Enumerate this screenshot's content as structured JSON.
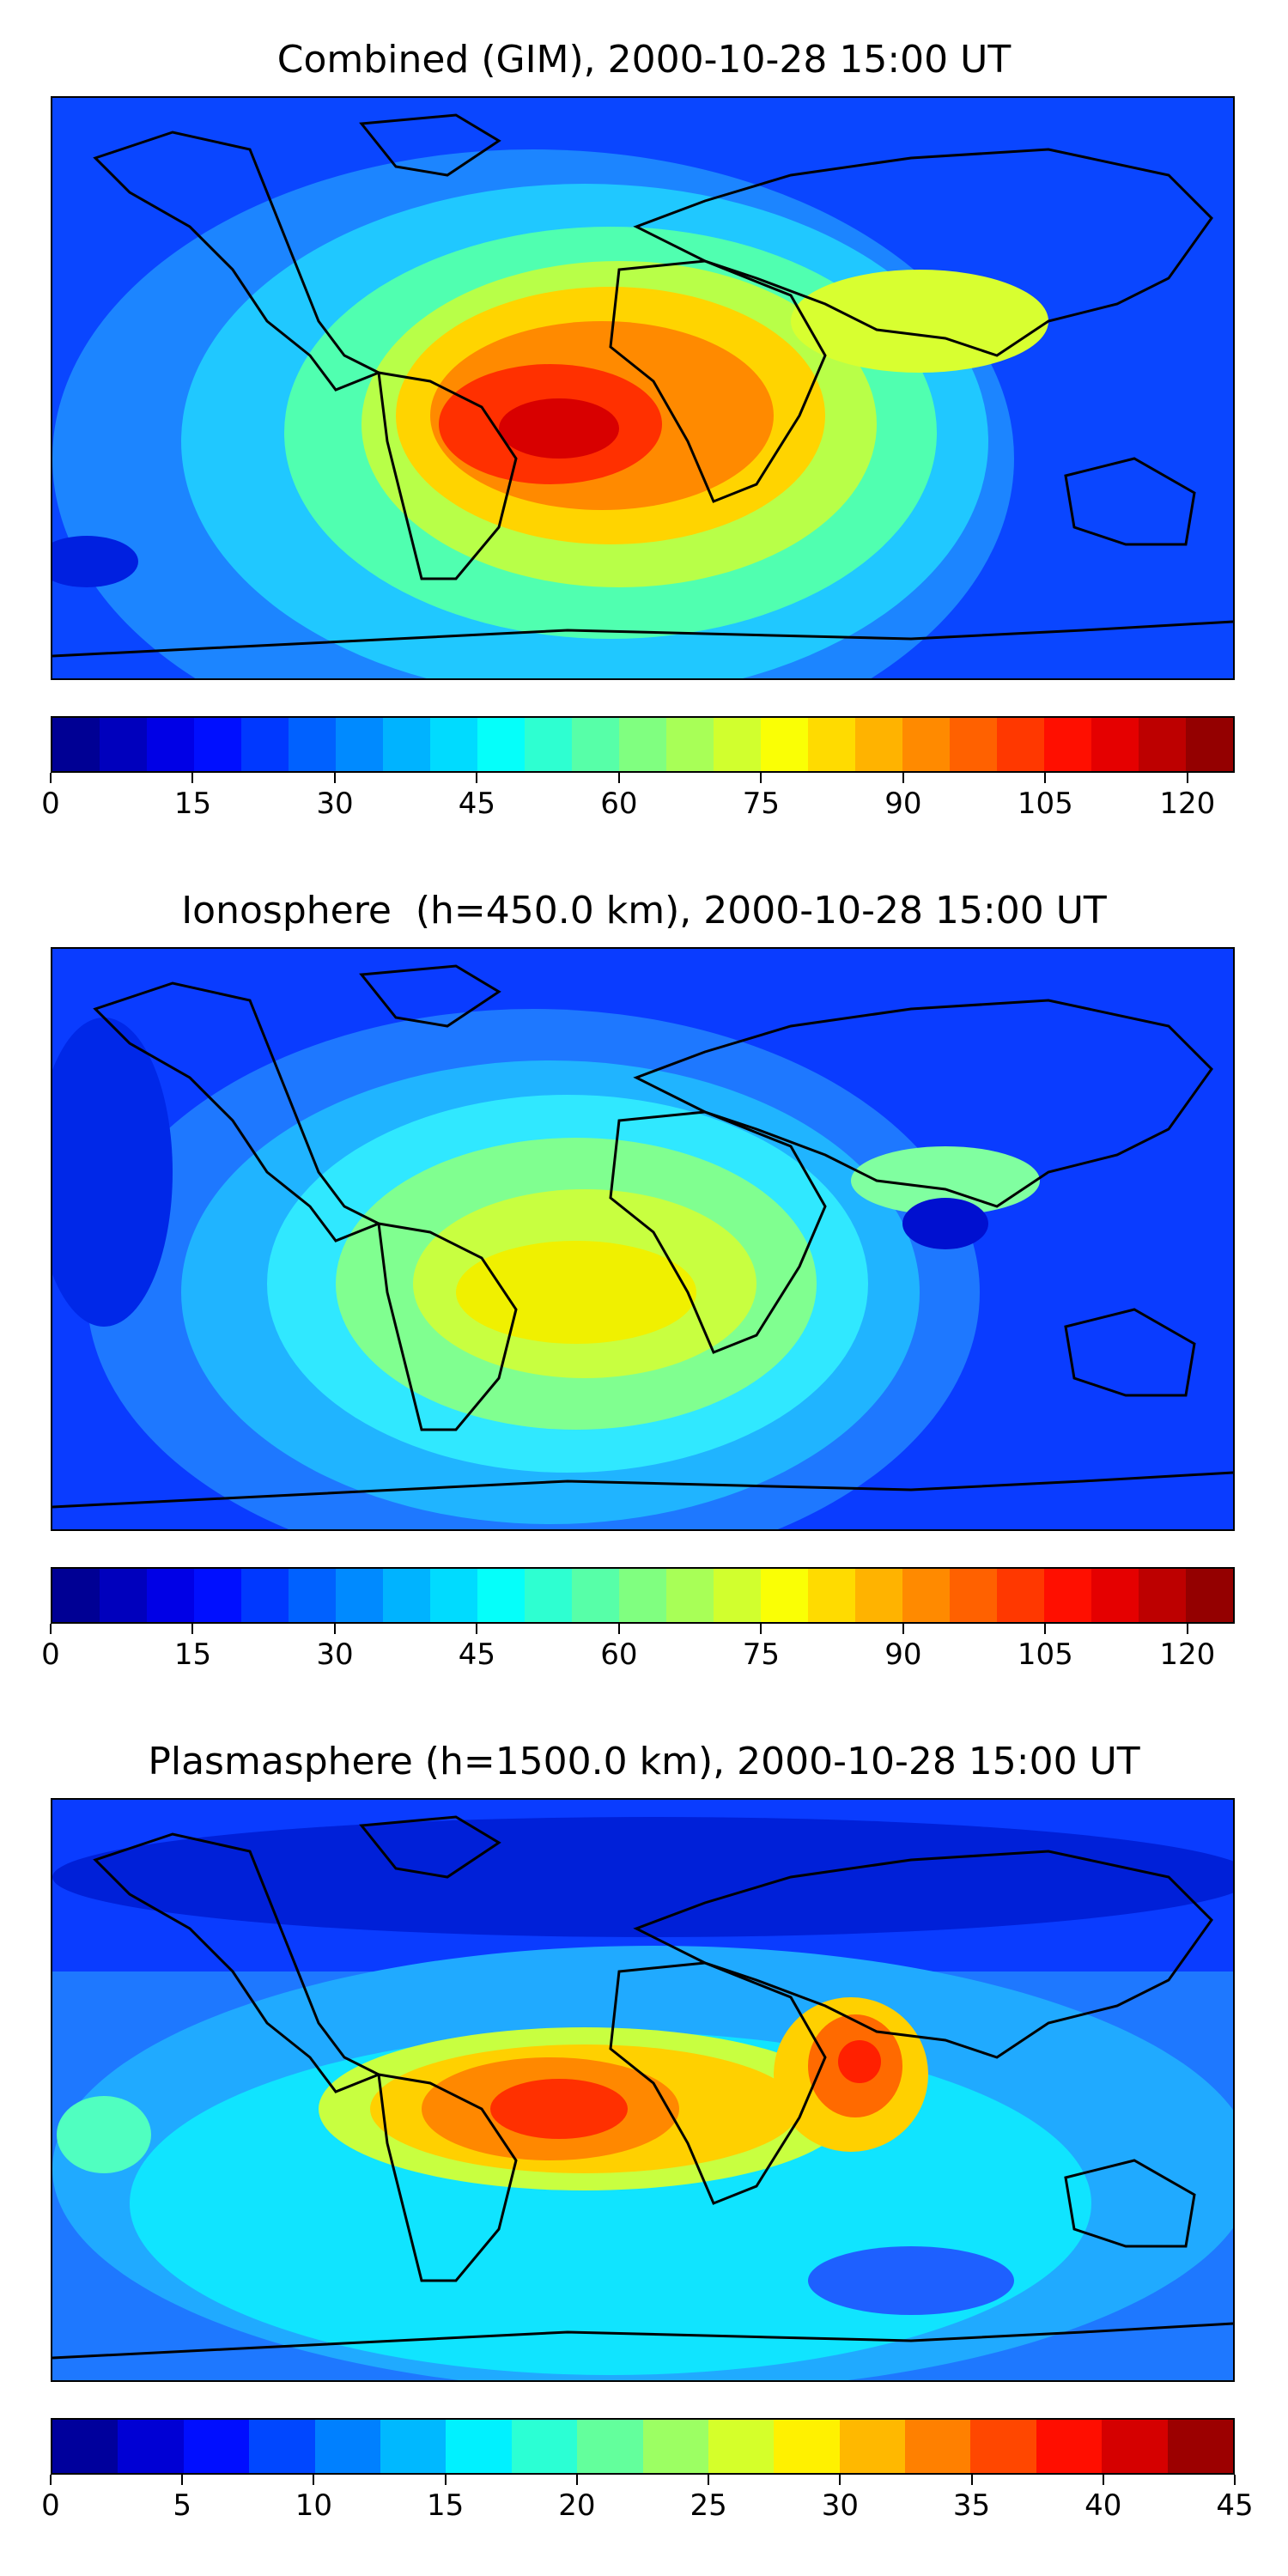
{
  "panels": [
    {
      "title": "Combined (GIM), 2000-10-28 15:00 UT",
      "colorbar": {
        "min": 0,
        "max": 125,
        "levels": 25,
        "tick_labels": [
          "0",
          "15",
          "30",
          "45",
          "60",
          "75",
          "90",
          "105",
          "120"
        ]
      }
    },
    {
      "title": "Ionosphere  (h=450.0 km), 2000-10-28 15:00 UT",
      "colorbar": {
        "min": 0,
        "max": 125,
        "levels": 25,
        "tick_labels": [
          "0",
          "15",
          "30",
          "45",
          "60",
          "75",
          "90",
          "105",
          "120"
        ]
      }
    },
    {
      "title": "Plasmasphere (h=1500.0 km), 2000-10-28 15:00 UT",
      "colorbar": {
        "min": 0,
        "max": 45,
        "levels": 18,
        "tick_labels": [
          "0",
          "5",
          "10",
          "15",
          "20",
          "25",
          "30",
          "35",
          "40",
          "45"
        ]
      }
    }
  ],
  "colormap": "jet"
}
